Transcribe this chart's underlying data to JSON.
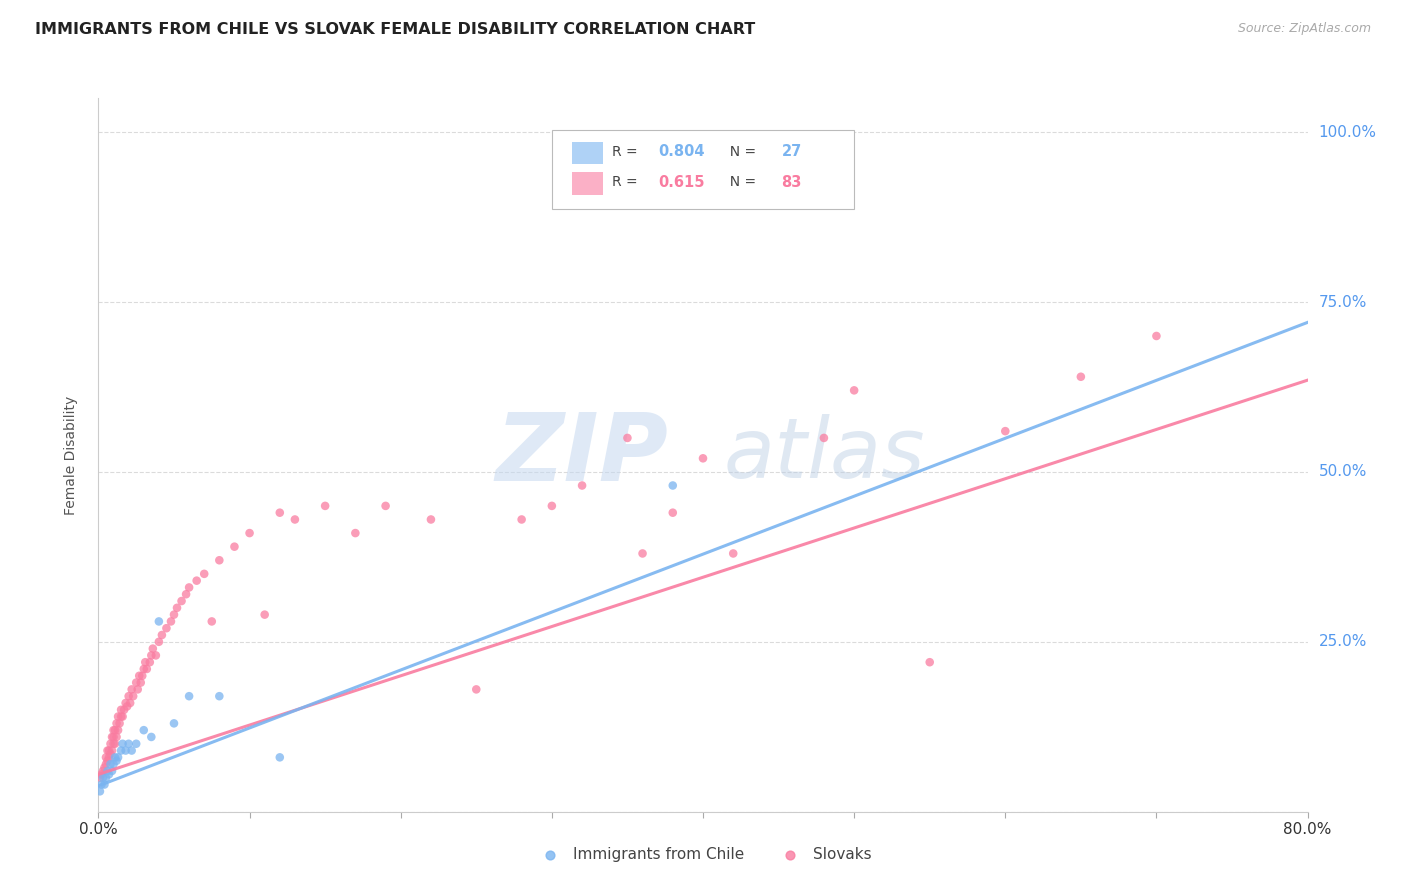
{
  "title": "IMMIGRANTS FROM CHILE VS SLOVAK FEMALE DISABILITY CORRELATION CHART",
  "source": "Source: ZipAtlas.com",
  "ylabel": "Female Disability",
  "legend_entries": [
    {
      "label": "Immigrants from Chile",
      "R": "0.804",
      "N": "27",
      "color": "#7ab4f0"
    },
    {
      "label": "Slovaks",
      "R": "0.615",
      "N": "83",
      "color": "#f97ca0"
    }
  ],
  "chile_scatter_x": [
    0.001,
    0.002,
    0.003,
    0.004,
    0.005,
    0.006,
    0.007,
    0.008,
    0.009,
    0.01,
    0.011,
    0.012,
    0.013,
    0.015,
    0.016,
    0.018,
    0.02,
    0.022,
    0.025,
    0.03,
    0.035,
    0.04,
    0.05,
    0.06,
    0.08,
    0.12,
    0.38
  ],
  "chile_scatter_y": [
    0.03,
    0.04,
    0.05,
    0.04,
    0.05,
    0.06,
    0.055,
    0.07,
    0.06,
    0.07,
    0.08,
    0.075,
    0.08,
    0.09,
    0.1,
    0.09,
    0.1,
    0.09,
    0.1,
    0.12,
    0.11,
    0.28,
    0.13,
    0.17,
    0.17,
    0.08,
    0.48
  ],
  "slovak_scatter_x": [
    0.001,
    0.002,
    0.003,
    0.004,
    0.005,
    0.005,
    0.006,
    0.006,
    0.007,
    0.007,
    0.008,
    0.008,
    0.009,
    0.009,
    0.01,
    0.01,
    0.01,
    0.011,
    0.011,
    0.012,
    0.012,
    0.013,
    0.013,
    0.014,
    0.015,
    0.015,
    0.016,
    0.017,
    0.018,
    0.019,
    0.02,
    0.021,
    0.022,
    0.023,
    0.025,
    0.026,
    0.027,
    0.028,
    0.029,
    0.03,
    0.031,
    0.032,
    0.034,
    0.035,
    0.036,
    0.038,
    0.04,
    0.042,
    0.045,
    0.048,
    0.05,
    0.052,
    0.055,
    0.058,
    0.06,
    0.065,
    0.07,
    0.075,
    0.08,
    0.09,
    0.1,
    0.11,
    0.12,
    0.13,
    0.15,
    0.17,
    0.19,
    0.22,
    0.25,
    0.28,
    0.32,
    0.36,
    0.42,
    0.48,
    0.55,
    0.6,
    0.65,
    0.7,
    0.38,
    0.4,
    0.5,
    0.3,
    0.35
  ],
  "slovak_scatter_y": [
    0.05,
    0.055,
    0.06,
    0.065,
    0.07,
    0.08,
    0.075,
    0.09,
    0.08,
    0.09,
    0.085,
    0.1,
    0.09,
    0.11,
    0.1,
    0.11,
    0.12,
    0.1,
    0.12,
    0.11,
    0.13,
    0.12,
    0.14,
    0.13,
    0.14,
    0.15,
    0.14,
    0.15,
    0.16,
    0.155,
    0.17,
    0.16,
    0.18,
    0.17,
    0.19,
    0.18,
    0.2,
    0.19,
    0.2,
    0.21,
    0.22,
    0.21,
    0.22,
    0.23,
    0.24,
    0.23,
    0.25,
    0.26,
    0.27,
    0.28,
    0.29,
    0.3,
    0.31,
    0.32,
    0.33,
    0.34,
    0.35,
    0.28,
    0.37,
    0.39,
    0.41,
    0.29,
    0.44,
    0.43,
    0.45,
    0.41,
    0.45,
    0.43,
    0.18,
    0.43,
    0.48,
    0.38,
    0.38,
    0.55,
    0.22,
    0.56,
    0.64,
    0.7,
    0.44,
    0.52,
    0.62,
    0.45,
    0.55
  ],
  "chile_line_x": [
    0.0,
    0.8
  ],
  "chile_line_y": [
    0.038,
    0.72
  ],
  "slovak_line_x": [
    0.0,
    0.8
  ],
  "slovak_line_y": [
    0.055,
    0.635
  ],
  "chile_color": "#7ab4f0",
  "slovak_color": "#f97ca0",
  "bg_color": "#ffffff",
  "grid_color": "#d8d8d8",
  "title_color": "#222222",
  "axis_label_color": "#555555",
  "right_tick_color": "#5599ee",
  "scatter_alpha": 0.75,
  "scatter_size": 38,
  "xlim": [
    0.0,
    0.8
  ],
  "ylim": [
    0.0,
    1.05
  ]
}
